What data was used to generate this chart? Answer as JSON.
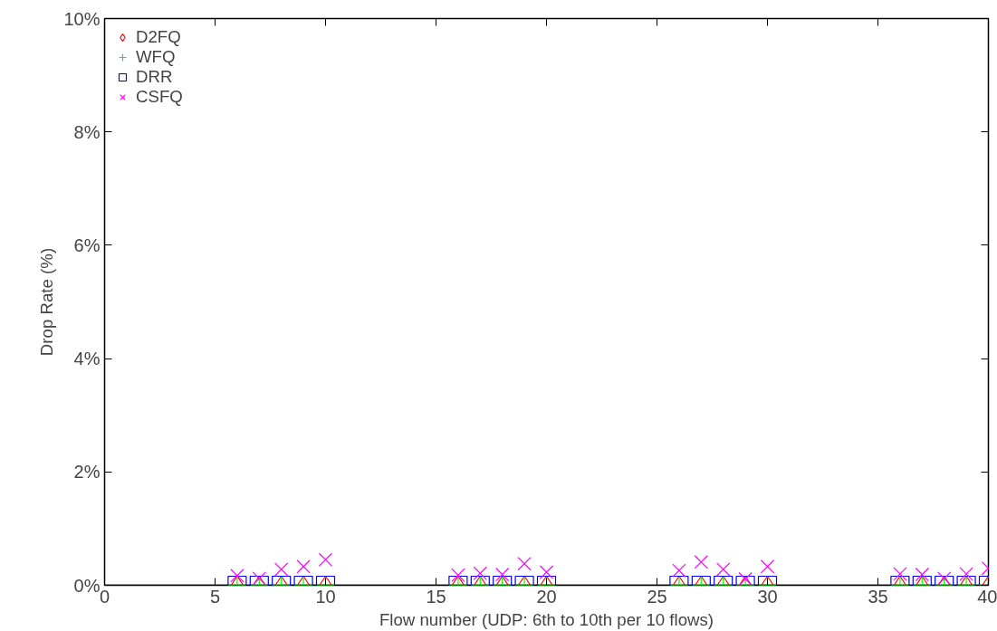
{
  "chart_data": {
    "type": "scatter",
    "xlabel": "Flow number (UDP: 6th to 10th per 10 flows)",
    "ylabel": "Drop Rate (%)",
    "x": [
      6,
      7,
      8,
      9,
      10,
      16,
      17,
      18,
      19,
      20,
      26,
      27,
      28,
      29,
      30,
      36,
      37,
      38,
      39,
      40
    ],
    "series": [
      {
        "name": "D2FQ",
        "color": "#ff0000",
        "marker": "diamond",
        "values": [
          0,
          0,
          0,
          0,
          0,
          0,
          0,
          0,
          0,
          0,
          0,
          0,
          0,
          0,
          0,
          0,
          0,
          0,
          0,
          0
        ]
      },
      {
        "name": "WFQ",
        "color": "#00ff00",
        "marker": "cross",
        "values": [
          0,
          0,
          0,
          0,
          0,
          0,
          0,
          0,
          0,
          0,
          0,
          0,
          0,
          0,
          0,
          0,
          0,
          0,
          0,
          0
        ]
      },
      {
        "name": "DRR",
        "color": "#0000ff",
        "marker": "square",
        "values": [
          0,
          0,
          0,
          0,
          0,
          0,
          0,
          0,
          0,
          0,
          0,
          0,
          0,
          0,
          0,
          0,
          0,
          0,
          0,
          0
        ]
      },
      {
        "name": "CSFQ",
        "color": "#ff00ff",
        "marker": "x",
        "values": [
          0.17,
          0.12,
          0.28,
          0.33,
          0.45,
          0.18,
          0.21,
          0.19,
          0.38,
          0.23,
          0.26,
          0.41,
          0.28,
          0.11,
          0.33,
          0.2,
          0.19,
          0.12,
          0.2,
          0.3
        ]
      }
    ],
    "xlim": [
      0,
      40
    ],
    "xticks": [
      0,
      5,
      10,
      15,
      20,
      25,
      30,
      35,
      40
    ],
    "ylim": [
      0,
      10
    ],
    "yticks": [
      {
        "value": 0,
        "label": "0%"
      },
      {
        "value": 2,
        "label": "2%"
      },
      {
        "value": 4,
        "label": "4%"
      },
      {
        "value": 6,
        "label": "6%"
      },
      {
        "value": 8,
        "label": "8%"
      },
      {
        "value": 10,
        "label": "10%"
      }
    ],
    "grid": false,
    "legend": "top left"
  }
}
